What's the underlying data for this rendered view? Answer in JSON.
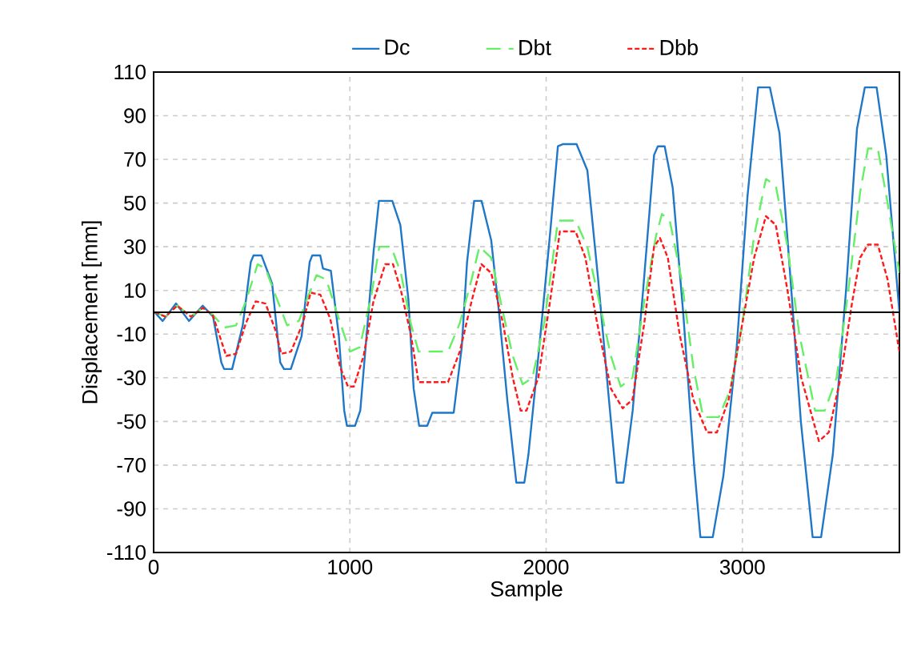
{
  "chart_data": {
    "type": "line",
    "xlabel": "Sample",
    "ylabel": "Displacement [mm]",
    "xlim": [
      0,
      3800
    ],
    "ylim": [
      -110,
      110
    ],
    "xticks": [
      0,
      1000,
      2000,
      3000
    ],
    "yticks": [
      -110,
      -90,
      -70,
      -50,
      -30,
      -10,
      10,
      30,
      50,
      70,
      90,
      110
    ],
    "grid": true,
    "legend": "top",
    "ref_lines": [
      {
        "axis": "y",
        "value": 0,
        "color": "#000000"
      }
    ],
    "series": [
      {
        "name": "Dc",
        "color": "#1f77c8",
        "line_style": "solid",
        "x": [
          5,
          46,
          114,
          180,
          250,
          303,
          345,
          359,
          400,
          454,
          495,
          509,
          550,
          604,
          645,
          664,
          699,
          754,
          795,
          808,
          849,
          863,
          903,
          944,
          971,
          985,
          1026,
          1053,
          1094,
          1121,
          1148,
          1216,
          1257,
          1298,
          1325,
          1353,
          1394,
          1420,
          1529,
          1570,
          1597,
          1633,
          1671,
          1720,
          1761,
          1802,
          1848,
          1889,
          1910,
          1965,
          2019,
          2060,
          2087,
          2155,
          2210,
          2264,
          2318,
          2359,
          2394,
          2441,
          2495,
          2550,
          2569,
          2604,
          2645,
          2699,
          2754,
          2786,
          2849,
          2903,
          2971,
          3026,
          3080,
          3140,
          3189,
          3243,
          3298,
          3358,
          3401,
          3461,
          3529,
          3584,
          3624,
          3684,
          3733,
          3774,
          3800
        ],
        "values": [
          0,
          -4,
          4,
          -4,
          3,
          -2,
          -23,
          -26,
          -26,
          -6,
          23,
          26,
          26,
          13,
          -23,
          -26,
          -26,
          -11,
          23,
          26,
          26,
          20,
          19,
          -11,
          -45,
          -52,
          -52,
          -45,
          -1,
          28,
          51,
          51,
          40,
          6,
          -35,
          -52,
          -52,
          -46,
          -46,
          -16,
          23,
          51,
          51,
          33,
          -1,
          -40,
          -78,
          -78,
          -65,
          -16,
          35,
          76,
          77,
          77,
          65,
          16,
          -38,
          -78,
          -78,
          -45,
          11,
          72,
          76,
          76,
          57,
          -1,
          -70,
          -103,
          -103,
          -75,
          -16,
          53,
          103,
          103,
          82,
          18,
          -50,
          -103,
          -103,
          -65,
          11,
          84,
          103,
          103,
          72,
          28,
          0
        ]
      },
      {
        "name": "Dbt",
        "color": "#66ee66",
        "line_style": "dashed",
        "x": [
          5,
          60,
          120,
          190,
          250,
          300,
          360,
          420,
          470,
          530,
          570,
          620,
          680,
          740,
          790,
          830,
          880,
          940,
          1000,
          1050,
          1110,
          1150,
          1210,
          1260,
          1310,
          1350,
          1500,
          1560,
          1620,
          1660,
          1720,
          1780,
          1830,
          1880,
          1930,
          1990,
          2060,
          2150,
          2210,
          2270,
          2330,
          2380,
          2440,
          2500,
          2560,
          2590,
          2630,
          2690,
          2750,
          2800,
          2880,
          2940,
          3000,
          3060,
          3120,
          3170,
          3230,
          3290,
          3370,
          3420,
          3480,
          3540,
          3600,
          3640,
          3690,
          3740,
          3800
        ],
        "values": [
          0,
          -2,
          3,
          -2,
          2,
          -1,
          -7,
          -6,
          5,
          22,
          20,
          8,
          -6,
          -4,
          8,
          17,
          15,
          -2,
          -18,
          -16,
          8,
          30,
          30,
          18,
          -5,
          -18,
          -18,
          -5,
          15,
          30,
          25,
          0,
          -20,
          -33,
          -30,
          -5,
          42,
          42,
          30,
          5,
          -20,
          -34,
          -30,
          5,
          35,
          45,
          42,
          15,
          -25,
          -48,
          -48,
          -35,
          -5,
          35,
          61,
          58,
          30,
          -10,
          -45,
          -45,
          -30,
          10,
          55,
          75,
          75,
          50,
          18
        ]
      },
      {
        "name": "Dbb",
        "color": "#ff1a1a",
        "line_style": "dotted",
        "x": [
          5,
          60,
          120,
          190,
          250,
          300,
          370,
          420,
          470,
          520,
          570,
          620,
          650,
          700,
          760,
          800,
          850,
          900,
          950,
          990,
          1020,
          1070,
          1120,
          1180,
          1220,
          1260,
          1310,
          1350,
          1500,
          1560,
          1620,
          1670,
          1720,
          1780,
          1830,
          1870,
          1900,
          1960,
          2020,
          2070,
          2150,
          2200,
          2260,
          2330,
          2390,
          2440,
          2500,
          2550,
          2580,
          2620,
          2680,
          2750,
          2820,
          2870,
          2930,
          3000,
          3060,
          3120,
          3170,
          3230,
          3300,
          3390,
          3440,
          3500,
          3560,
          3600,
          3640,
          3690,
          3740,
          3800
        ],
        "values": [
          0,
          -2,
          3,
          -2,
          2,
          -1,
          -20,
          -19,
          -5,
          5,
          4,
          -8,
          -19,
          -18,
          -5,
          9,
          8,
          -3,
          -25,
          -34,
          -34,
          -20,
          5,
          22,
          22,
          10,
          -10,
          -32,
          -32,
          -18,
          5,
          22,
          18,
          -5,
          -30,
          -45,
          -45,
          -30,
          5,
          37,
          37,
          25,
          -5,
          -35,
          -44,
          -40,
          -5,
          30,
          34,
          25,
          -10,
          -40,
          -55,
          -55,
          -40,
          -5,
          25,
          44,
          40,
          10,
          -30,
          -59,
          -55,
          -30,
          5,
          25,
          31,
          31,
          15,
          -18
        ]
      }
    ]
  }
}
